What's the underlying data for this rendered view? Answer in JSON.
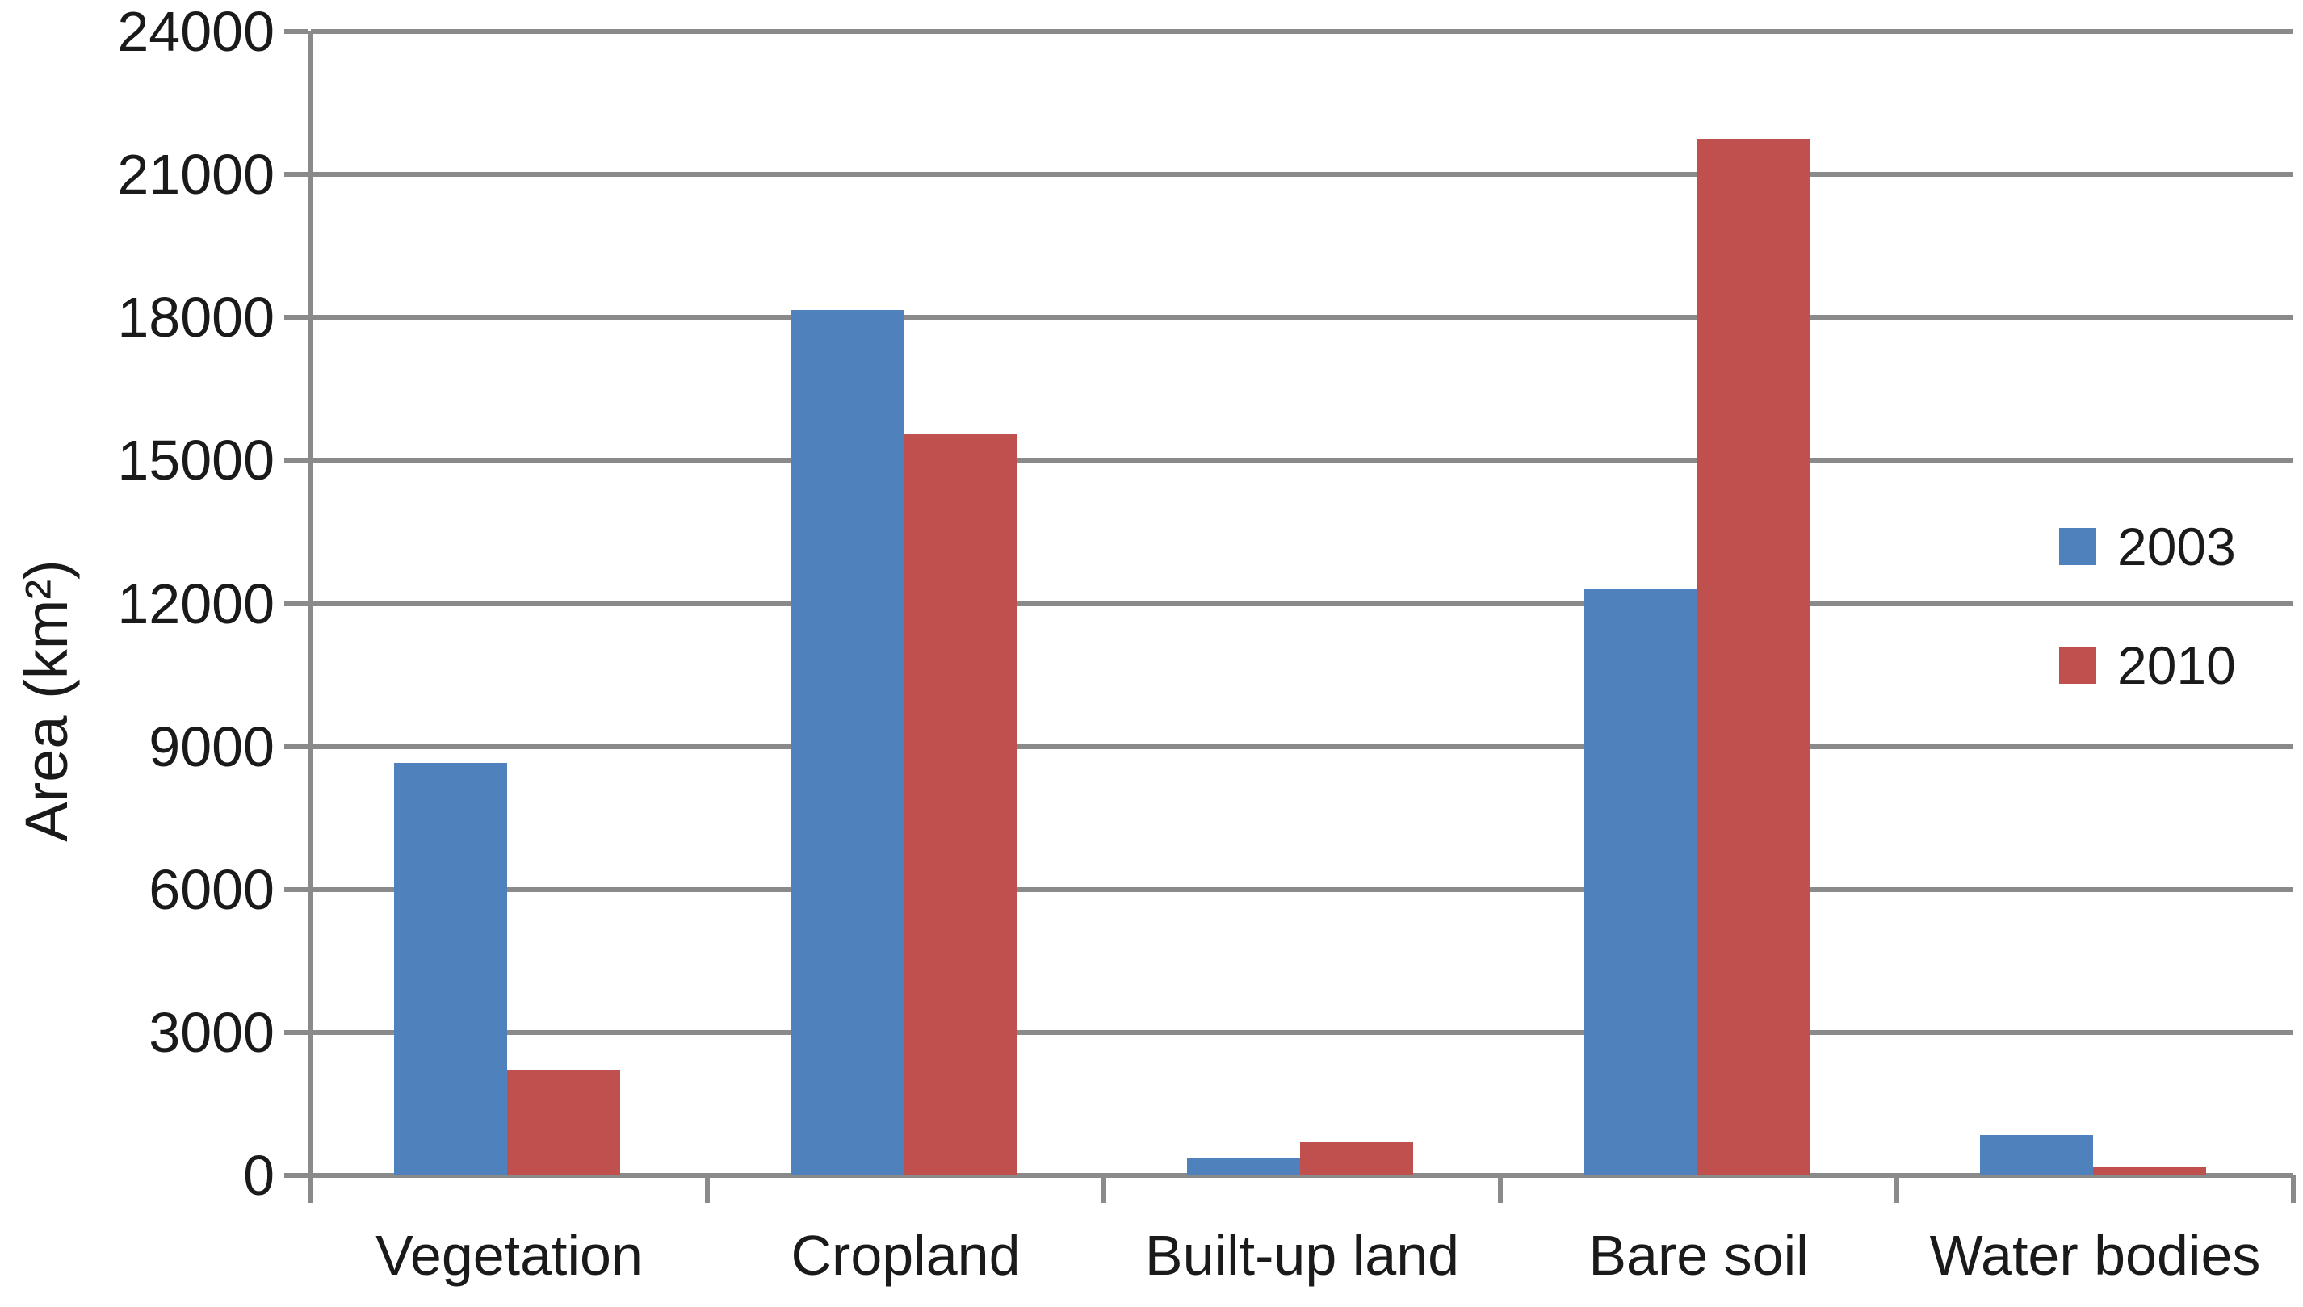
{
  "page": {
    "background": "#ffffff"
  },
  "colors": {
    "axis": "#8A8A8A",
    "grid": "#8A8A8A",
    "text": "#1a1a1a",
    "series_2003": "#4F81BD",
    "series_2010": "#C0504D"
  },
  "y_axis": {
    "title": "Area (km²)",
    "tick_labels": [
      "0",
      "3000",
      "6000",
      "9000",
      "12000",
      "15000",
      "18000",
      "21000",
      "24000"
    ]
  },
  "x_axis": {
    "category_labels": [
      "Vegetation",
      "Cropland",
      "Built-up land",
      "Bare soil",
      "Water bodies"
    ]
  },
  "legend": {
    "entries": [
      {
        "label": "2003",
        "color": "#4F81BD"
      },
      {
        "label": "2010",
        "color": "#C0504D"
      }
    ]
  },
  "chart_data": {
    "type": "bar",
    "title": "",
    "categories": [
      "Vegetation",
      "Cropland",
      "Built-up land",
      "Bare soil",
      "Water bodies"
    ],
    "series": [
      {
        "name": "2003",
        "color": "#4F81BD",
        "values": [
          8650,
          18150,
          380,
          12300,
          850
        ]
      },
      {
        "name": "2010",
        "color": "#C0504D",
        "values": [
          2200,
          15550,
          710,
          21750,
          170
        ]
      }
    ],
    "xlabel": "",
    "ylabel": "Area (km²)",
    "ylim": [
      0,
      24000
    ],
    "ytick_step": 3000,
    "grid": true,
    "legend_position": "right-middle"
  }
}
